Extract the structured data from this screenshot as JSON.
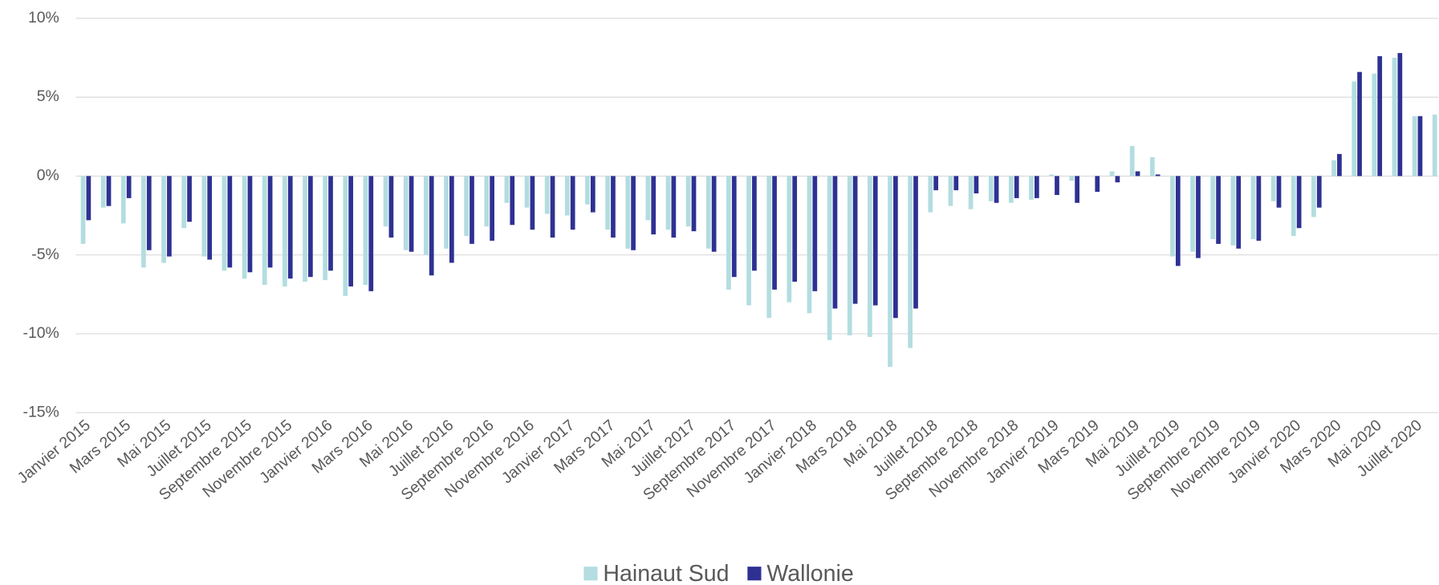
{
  "chart_data": {
    "type": "bar",
    "categories": [
      "Janvier 2015",
      null,
      "Mars 2015",
      null,
      "Mai 2015",
      null,
      "Juillet 2015",
      null,
      "Septembre 2015",
      null,
      "Novembre 2015",
      null,
      "Janvier 2016",
      null,
      "Mars 2016",
      null,
      "Mai 2016",
      null,
      "Juillet 2016",
      null,
      "Septembre 2016",
      null,
      "Novembre 2016",
      null,
      "Janvier 2017",
      null,
      "Mars 2017",
      null,
      "Mai 2017",
      null,
      "Juillet 2017",
      null,
      "Septembre 2017",
      null,
      "Novembre 2017",
      null,
      "Janvier 2018",
      null,
      "Mars 2018",
      null,
      "Mai 2018",
      null,
      "Juillet 2018",
      null,
      "Septembre 2018",
      null,
      "Novembre 2018",
      null,
      "Janvier 2019",
      null,
      "Mars 2019",
      null,
      "Mai 2019",
      null,
      "Juillet 2019",
      null,
      "Septembre 2019",
      null,
      "Novembre 2019",
      null,
      "Janvier 2020",
      null,
      "Mars 2020",
      null,
      "Mai 2020",
      null,
      "Juillet 2020",
      null
    ],
    "series": [
      {
        "name": "Hainaut Sud",
        "color": "#b3dde0",
        "values": [
          -4.3,
          -2.0,
          -3.0,
          -5.8,
          -5.5,
          -3.3,
          -5.1,
          -6.0,
          -6.5,
          -6.9,
          -7.0,
          -6.7,
          -6.6,
          -7.6,
          -6.9,
          -3.2,
          -4.7,
          -5.0,
          -4.6,
          -3.8,
          -3.2,
          -1.7,
          -2.0,
          -2.4,
          -2.5,
          -1.8,
          -3.4,
          -4.6,
          -2.8,
          -3.4,
          -3.2,
          -4.6,
          -7.2,
          -8.2,
          -9.0,
          -8.0,
          -8.7,
          -10.4,
          -10.1,
          -10.2,
          -12.1,
          -10.9,
          -2.3,
          -1.9,
          -2.1,
          -1.6,
          -1.7,
          -1.5,
          0.1,
          -0.3,
          0,
          0.3,
          1.9,
          1.2,
          -5.1,
          -4.8,
          -4.0,
          -4.4,
          -4.0,
          -1.6,
          -3.8,
          -2.6,
          1.0,
          6.0,
          6.5,
          7.5,
          3.8,
          3.9
        ]
      },
      {
        "name": "Wallonie",
        "color": "#2e3192",
        "values": [
          -2.8,
          -1.9,
          -1.4,
          -4.7,
          -5.1,
          -2.9,
          -5.3,
          -5.8,
          -6.1,
          -5.8,
          -6.5,
          -6.4,
          -6.0,
          -7.0,
          -7.3,
          -3.9,
          -4.8,
          -6.3,
          -5.5,
          -4.3,
          -4.1,
          -3.1,
          -3.4,
          -3.9,
          -3.4,
          -2.3,
          -3.9,
          -4.7,
          -3.7,
          -3.9,
          -3.5,
          -4.8,
          -6.4,
          -6.0,
          -7.2,
          -6.7,
          -7.3,
          -8.4,
          -8.1,
          -8.2,
          -9.0,
          -8.4,
          -0.9,
          -0.9,
          -1.1,
          -1.7,
          -1.4,
          -1.4,
          -1.2,
          -1.7,
          -1.0,
          -0.4,
          0.3,
          0.1,
          -5.7,
          -5.2,
          -4.3,
          -4.6,
          -4.1,
          -2.0,
          -3.3,
          -2.0,
          1.4,
          6.6,
          7.6,
          7.8,
          3.8,
          null
        ]
      }
    ],
    "ylim": [
      -15,
      10
    ],
    "yticks": [
      {
        "value": -15,
        "label": "-15%"
      },
      {
        "value": -10,
        "label": "-10%"
      },
      {
        "value": -5,
        "label": "-5%"
      },
      {
        "value": 0,
        "label": "0%"
      },
      {
        "value": 5,
        "label": "5%"
      },
      {
        "value": 10,
        "label": "10%"
      }
    ],
    "grid": true,
    "legend": "bottom"
  }
}
